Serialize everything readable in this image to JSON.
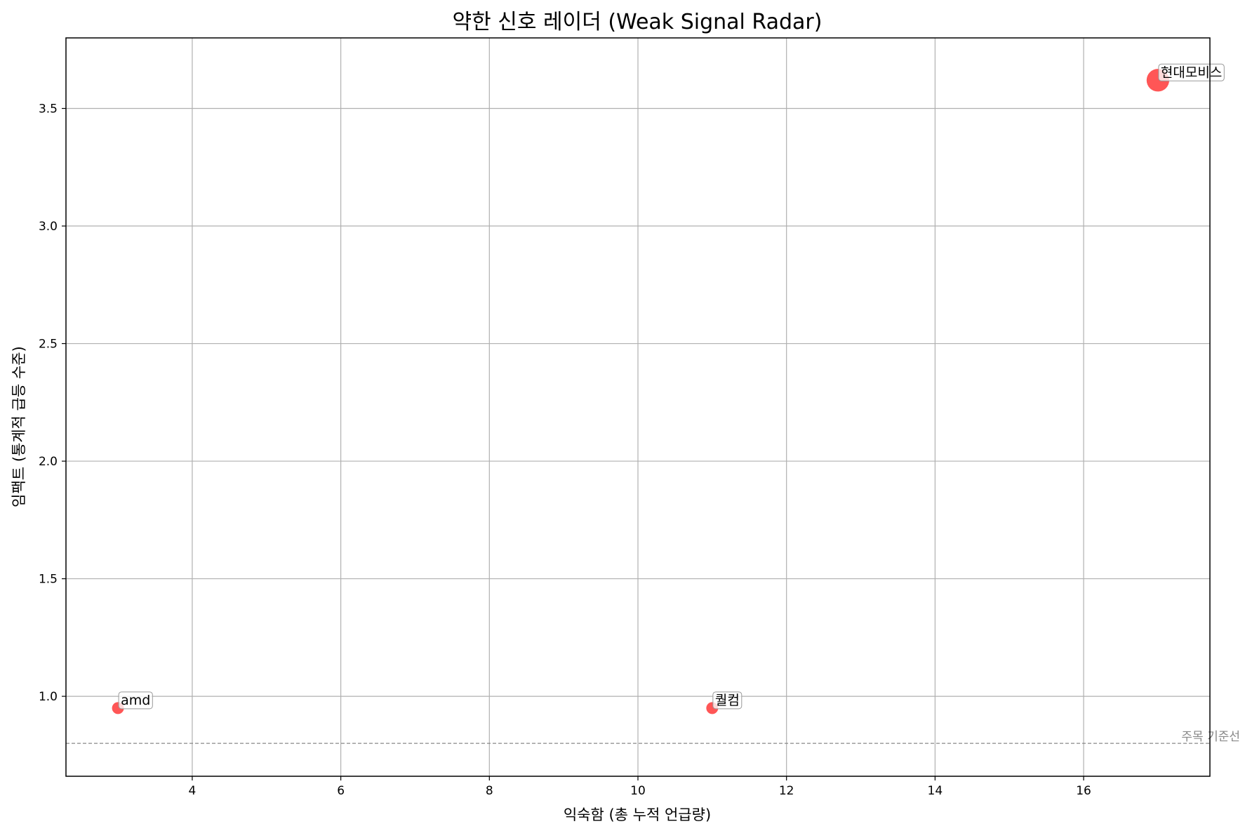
{
  "chart_data": {
    "type": "scatter",
    "title": "약한 신호 레이더 (Weak Signal Radar)",
    "xlabel": "익숙함 (총 누적 언급량)",
    "ylabel": "임팩트 (통계적 급등 수준)",
    "xlim": [
      2.3,
      17.7
    ],
    "ylim": [
      0.66,
      3.8
    ],
    "xticks": [
      4,
      6,
      8,
      10,
      12,
      14,
      16
    ],
    "yticks": [
      1.0,
      1.5,
      2.0,
      2.5,
      3.0,
      3.5
    ],
    "xtick_labels": [
      "4",
      "6",
      "8",
      "10",
      "12",
      "14",
      "16"
    ],
    "ytick_labels": [
      "1.0",
      "1.5",
      "2.0",
      "2.5",
      "3.0",
      "3.5"
    ],
    "grid": true,
    "point_color": "#ff4d4d",
    "points": [
      {
        "label": "amd",
        "x": 3,
        "y": 0.95,
        "size": 1
      },
      {
        "label": "퀄컴",
        "x": 11,
        "y": 0.95,
        "size": 1
      },
      {
        "label": "현대모비스",
        "x": 17,
        "y": 3.62,
        "size": 3.6
      }
    ],
    "reference_line": {
      "y": 0.8,
      "label": "주목 기준선",
      "color": "#888888"
    }
  }
}
